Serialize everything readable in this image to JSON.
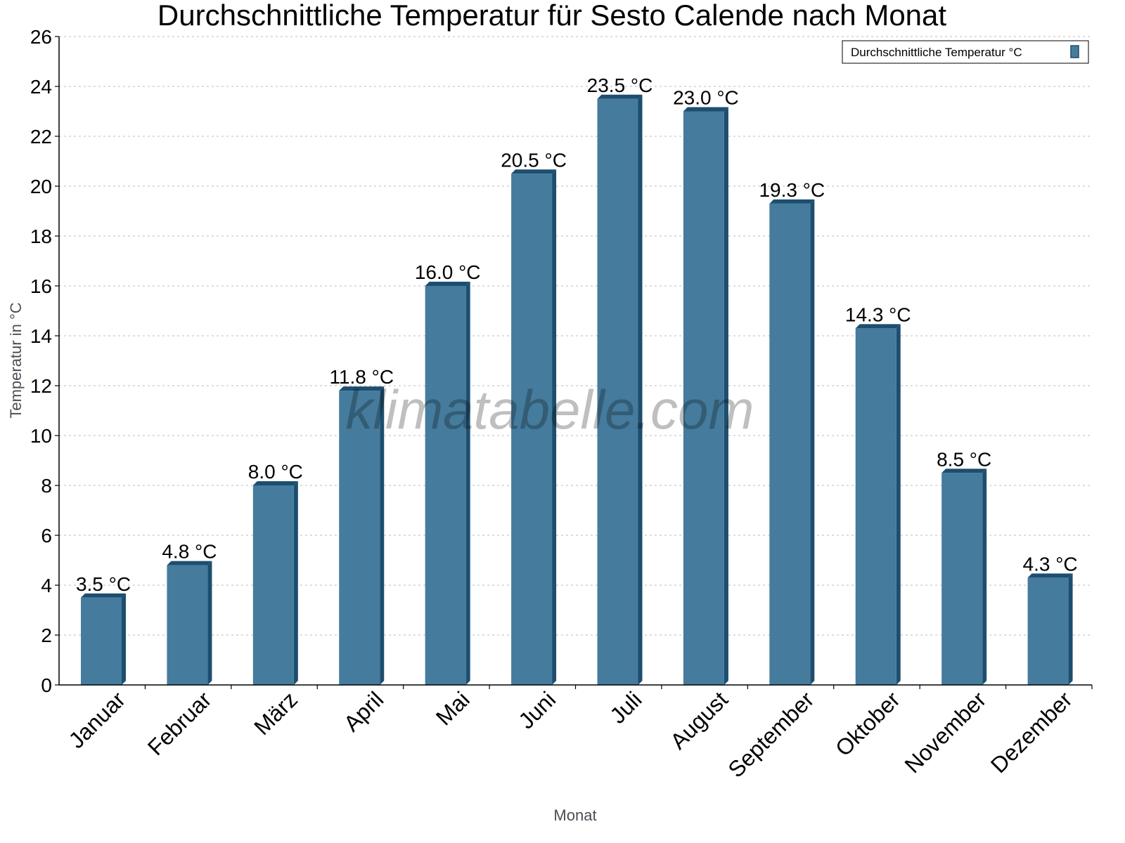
{
  "chart_data": {
    "type": "bar",
    "title": "Durchschnittliche Temperatur für Sesto Calende nach Monat",
    "xlabel": "Monat",
    "ylabel": "Temperatur in °C",
    "ylim": [
      0,
      26
    ],
    "yticks": [
      0,
      2,
      4,
      6,
      8,
      10,
      12,
      14,
      16,
      18,
      20,
      22,
      24,
      26
    ],
    "grid": true,
    "legend_position": "top-right",
    "categories": [
      "Januar",
      "Februar",
      "März",
      "April",
      "Mai",
      "Juni",
      "Juli",
      "August",
      "September",
      "Oktober",
      "November",
      "Dezember"
    ],
    "series": [
      {
        "name": "Durchschnittliche Temperatur °C",
        "values": [
          3.5,
          4.8,
          8.0,
          11.8,
          16.0,
          20.5,
          23.5,
          23.0,
          19.3,
          14.3,
          8.5,
          4.3
        ],
        "labels": [
          "3.5 °C",
          "4.8 °C",
          "8.0 °C",
          "11.8 °C",
          "16.0 °C",
          "20.5 °C",
          "23.5 °C",
          "23.0 °C",
          "19.3 °C",
          "14.3 °C",
          "8.5 °C",
          "4.3 °C"
        ],
        "color": "#457b9d",
        "shade_color": "#1d4e6f"
      }
    ],
    "watermark": "klimatabelle.com"
  }
}
